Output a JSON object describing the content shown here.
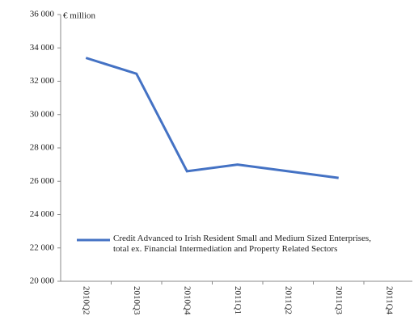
{
  "chart_data": {
    "type": "line",
    "annotation": "€ million",
    "categories": [
      "2010Q2",
      "2010Q3",
      "2010Q4",
      "2011Q1",
      "2011Q2",
      "2011Q3",
      "2011Q4"
    ],
    "series": [
      {
        "name": "Credit Advanced to Irish Resident Small and Medium Sized Enterprises, total ex. Financial Intermediation and Property Related Sectors",
        "color": "#4472c4",
        "values": [
          33400,
          32450,
          26600,
          27000,
          26600,
          26200,
          null
        ]
      }
    ],
    "ylim": [
      20000,
      36000
    ],
    "yticks": [
      {
        "value": 20000,
        "label": "20 000"
      },
      {
        "value": 22000,
        "label": "22 000"
      },
      {
        "value": 24000,
        "label": "24 000"
      },
      {
        "value": 26000,
        "label": "26 000"
      },
      {
        "value": 28000,
        "label": "28 000"
      },
      {
        "value": 30000,
        "label": "30 000"
      },
      {
        "value": 32000,
        "label": "32 000"
      },
      {
        "value": 34000,
        "label": "34 000"
      },
      {
        "value": 36000,
        "label": "36 000"
      }
    ],
    "grid": false
  }
}
